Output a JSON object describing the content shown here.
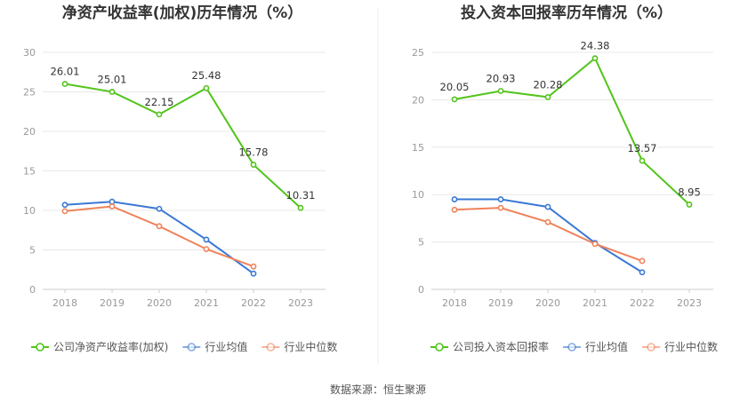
{
  "source": "数据来源：恒生聚源",
  "chart_data": [
    {
      "type": "line",
      "title": "净资产收益率(加权)历年情况（%）",
      "categories": [
        "2018",
        "2019",
        "2020",
        "2021",
        "2022",
        "2023"
      ],
      "ylim": [
        0,
        30
      ],
      "yticks": [
        0,
        5,
        10,
        15,
        20,
        25,
        30
      ],
      "grid": true,
      "legend_position": "bottom",
      "series": [
        {
          "name": "公司净资产收益率(加权)",
          "color": "#52c41a",
          "values": [
            26.01,
            25.01,
            22.15,
            25.48,
            15.78,
            10.31
          ],
          "labels": [
            "26.01",
            "25.01",
            "22.15",
            "25.48",
            "15.78",
            "10.31"
          ]
        },
        {
          "name": "行业均值",
          "color": "#3a78d4",
          "values": [
            10.7,
            11.1,
            10.2,
            6.3,
            2.0,
            null
          ]
        },
        {
          "name": "行业中位数",
          "color": "#f0825a",
          "values": [
            9.9,
            10.5,
            8.0,
            5.1,
            2.9,
            null
          ]
        }
      ]
    },
    {
      "type": "line",
      "title": "投入资本回报率历年情况（%）",
      "categories": [
        "2018",
        "2019",
        "2020",
        "2021",
        "2022",
        "2023"
      ],
      "ylim": [
        0,
        25
      ],
      "yticks": [
        0,
        5,
        10,
        15,
        20,
        25
      ],
      "grid": true,
      "legend_position": "bottom",
      "series": [
        {
          "name": "公司投入资本回报率",
          "color": "#52c41a",
          "values": [
            20.05,
            20.93,
            20.28,
            24.38,
            13.57,
            8.95
          ],
          "labels": [
            "20.05",
            "20.93",
            "20.28",
            "24.38",
            "13.57",
            "8.95"
          ]
        },
        {
          "name": "行业均值",
          "color": "#3a78d4",
          "values": [
            9.5,
            9.5,
            8.7,
            4.9,
            1.8,
            null
          ]
        },
        {
          "name": "行业中位数",
          "color": "#f0825a",
          "values": [
            8.4,
            8.6,
            7.1,
            4.8,
            3.0,
            null
          ]
        }
      ]
    }
  ]
}
